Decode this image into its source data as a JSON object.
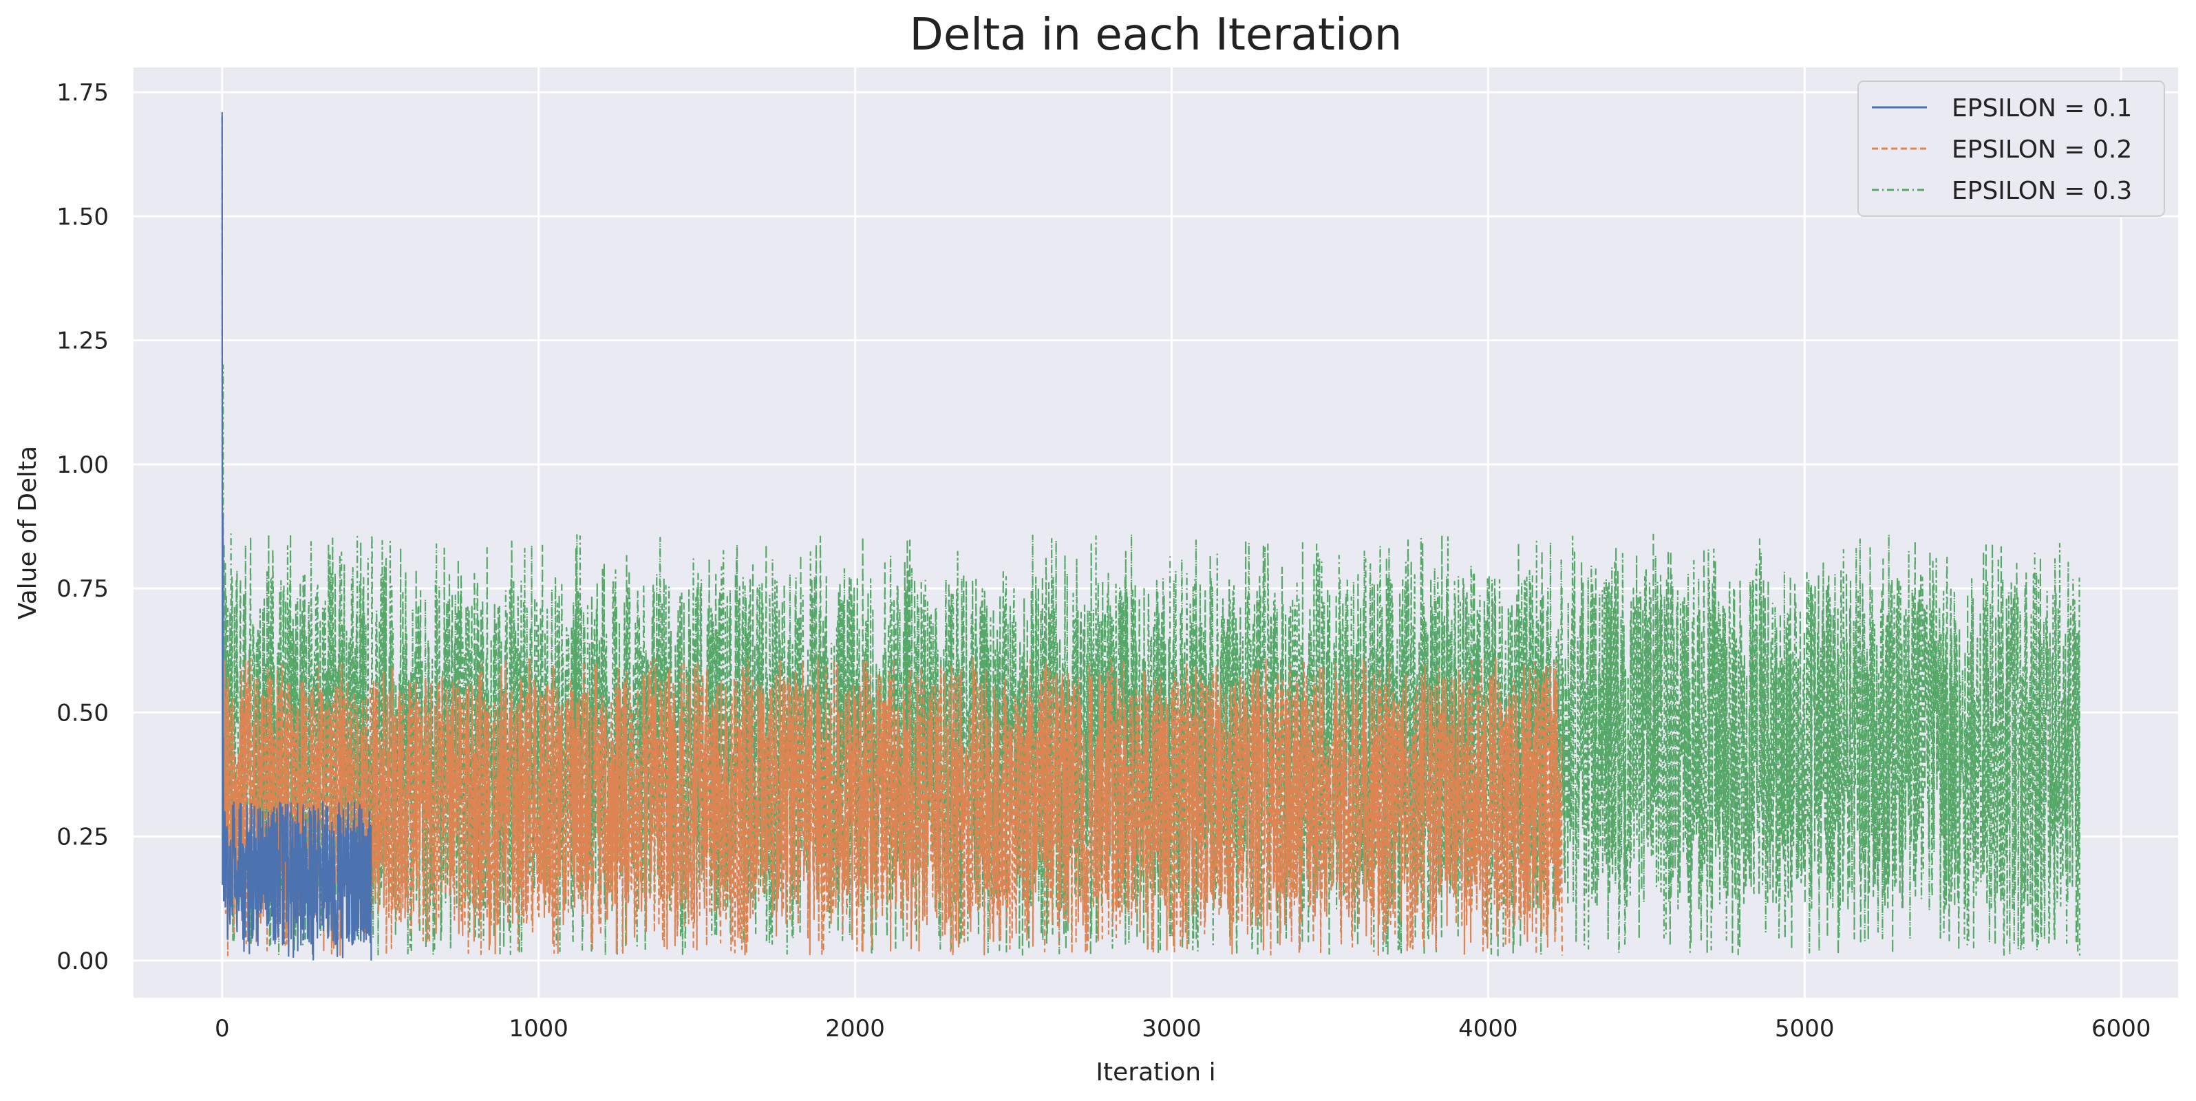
{
  "chart_data": {
    "type": "line",
    "title": "Delta in each Iteration",
    "xlabel": "Iteration i",
    "ylabel": "Value of Delta",
    "xlim": [
      -280,
      6180
    ],
    "ylim": [
      -0.075,
      1.8
    ],
    "xticks": [
      0,
      1000,
      2000,
      3000,
      4000,
      5000,
      6000
    ],
    "xtick_labels": [
      "0",
      "1000",
      "2000",
      "3000",
      "4000",
      "5000",
      "6000"
    ],
    "yticks": [
      0.0,
      0.25,
      0.5,
      0.75,
      1.0,
      1.25,
      1.5,
      1.75
    ],
    "ytick_labels": [
      "0.00",
      "0.25",
      "0.50",
      "0.75",
      "1.00",
      "1.25",
      "1.50",
      "1.75"
    ],
    "grid": true,
    "legend_position": "top-right",
    "background_color": "#eaeaf2",
    "series": [
      {
        "name": "EPSILON = 0.3",
        "color": "#55a868",
        "dash": "dashdot",
        "n_points": 5870,
        "envelope": {
          "min": 0.01,
          "typical_low": 0.1,
          "typical_high": 0.78,
          "max": 0.86
        },
        "x": [
          0,
          3,
          6,
          10,
          20,
          50,
          100,
          200,
          500,
          1000,
          2000,
          3000,
          4000,
          4230,
          4500,
          5000,
          5500,
          5860,
          5869
        ],
        "y": [
          1.7,
          1.2,
          0.84,
          0.8,
          0.62,
          0.5,
          0.58,
          0.55,
          0.6,
          0.52,
          0.56,
          0.5,
          0.54,
          0.5,
          0.48,
          0.42,
          0.45,
          0.6,
          0.01
        ]
      },
      {
        "name": "EPSILON = 0.2",
        "color": "#dd8452",
        "dash": "dashed",
        "n_points": 4235,
        "envelope": {
          "min": 0.01,
          "typical_low": 0.07,
          "typical_high": 0.57,
          "max": 0.61
        },
        "x": [
          0,
          3,
          6,
          10,
          50,
          100,
          500,
          1000,
          2000,
          3000,
          4000,
          4230,
          4234
        ],
        "y": [
          1.7,
          0.9,
          0.6,
          0.45,
          0.35,
          0.3,
          0.32,
          0.3,
          0.33,
          0.3,
          0.31,
          0.45,
          0.01
        ]
      },
      {
        "name": "EPSILON = 0.1",
        "color": "#4c72b0",
        "dash": "solid",
        "n_points": 472,
        "envelope": {
          "min": 0.0,
          "typical_low": 0.03,
          "typical_high": 0.31,
          "max": 0.32
        },
        "x": [
          0,
          2,
          4,
          8,
          50,
          100,
          200,
          300,
          400,
          465,
          471
        ],
        "y": [
          1.71,
          0.9,
          0.45,
          0.3,
          0.2,
          0.18,
          0.2,
          0.17,
          0.2,
          0.3,
          0.0
        ]
      }
    ],
    "legend": [
      {
        "label": "EPSILON = 0.1",
        "color": "#4c72b0",
        "dash": "solid"
      },
      {
        "label": "EPSILON = 0.2",
        "color": "#dd8452",
        "dash": "dashed"
      },
      {
        "label": "EPSILON = 0.3",
        "color": "#55a868",
        "dash": "dashdot"
      }
    ]
  }
}
